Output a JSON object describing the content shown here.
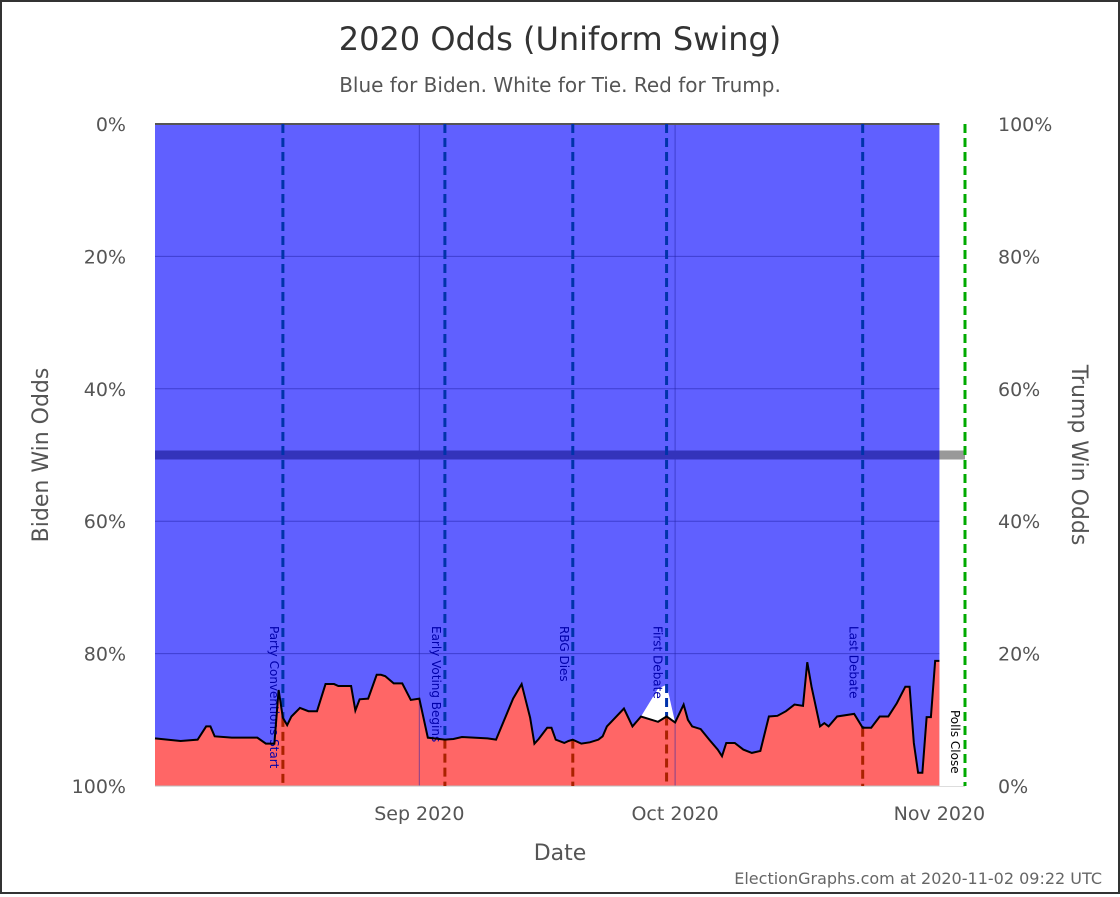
{
  "chart_data": {
    "type": "area",
    "title": "2020 Odds (Uniform Swing)",
    "subtitle": "Blue for Biden. White for Tie. Red for Trump.",
    "xlabel": "Date",
    "ylabel_left": "Biden Win Odds",
    "ylabel_right": "Trump Win Odds",
    "x_range": [
      "2020-08-01",
      "2020-11-04"
    ],
    "x_ticks": [
      {
        "date": "2020-09-01",
        "label": "Sep 2020"
      },
      {
        "date": "2020-10-01",
        "label": "Oct 2020"
      },
      {
        "date": "2020-11-01",
        "label": "Nov 2020"
      }
    ],
    "left_ticks": [
      {
        "value": 0,
        "label": "0%"
      },
      {
        "value": 20,
        "label": "20%"
      },
      {
        "value": 40,
        "label": "40%"
      },
      {
        "value": 60,
        "label": "60%"
      },
      {
        "value": 80,
        "label": "80%"
      },
      {
        "value": 100,
        "label": "100%"
      }
    ],
    "right_ticks": [
      {
        "value": 0,
        "label": "100%"
      },
      {
        "value": 20,
        "label": "80%"
      },
      {
        "value": 40,
        "label": "60%"
      },
      {
        "value": 60,
        "label": "40%"
      },
      {
        "value": 80,
        "label": "20%"
      },
      {
        "value": 100,
        "label": "0%"
      }
    ],
    "grid": true,
    "colors": {
      "biden": "#6060ff",
      "trump": "#ff6666",
      "tie": "#ffffff",
      "event_line": "#0033aa",
      "event_line_lower": "#aa2200",
      "event_text": "#0000aa",
      "event_text_lower": "#aa0000",
      "polls_close": "#00aa00",
      "midline": "#3333bb",
      "outline": "#000000"
    },
    "events": [
      {
        "date": "2020-08-16",
        "label": "Party Conventions Start"
      },
      {
        "date": "2020-09-04",
        "label": "Early Voting Begins"
      },
      {
        "date": "2020-09-19",
        "label": "RBG Dies"
      },
      {
        "date": "2020-09-30",
        "label": "First Debate"
      },
      {
        "date": "2020-10-23",
        "label": "Last Debate"
      }
    ],
    "polls_close": {
      "date": "2020-11-04",
      "label": "Polls Close"
    },
    "series": [
      {
        "dates": [
          "2020-08-01",
          "2020-08-04",
          "2020-08-06",
          "2020-08-07",
          "2020-08-07.5",
          "2020-08-08",
          "2020-08-10",
          "2020-08-13",
          "2020-08-14",
          "2020-08-15",
          "2020-08-15.5",
          "2020-08-16",
          "2020-08-16.5",
          "2020-08-17",
          "2020-08-18",
          "2020-08-19",
          "2020-08-20",
          "2020-08-21",
          "2020-08-22",
          "2020-08-22.5",
          "2020-08-23",
          "2020-08-24",
          "2020-08-24.5",
          "2020-08-25",
          "2020-08-26",
          "2020-08-27",
          "2020-08-27.5",
          "2020-08-28",
          "2020-08-29",
          "2020-08-30",
          "2020-08-31",
          "2020-09-01",
          "2020-09-02",
          "2020-09-04",
          "2020-09-05",
          "2020-09-06",
          "2020-09-09",
          "2020-09-10",
          "2020-09-12",
          "2020-09-13",
          "2020-09-14",
          "2020-09-14.5",
          "2020-09-15",
          "2020-09-16",
          "2020-09-16.5",
          "2020-09-17",
          "2020-09-18",
          "2020-09-18.5",
          "2020-09-19",
          "2020-09-20",
          "2020-09-21",
          "2020-09-22",
          "2020-09-22.5",
          "2020-09-23",
          "2020-09-25",
          "2020-09-26",
          "2020-09-27",
          "2020-09-29",
          "2020-09-30",
          "2020-10-01",
          "2020-10-02",
          "2020-10-02.5",
          "2020-10-03",
          "2020-10-04",
          "2020-10-05",
          "2020-10-06",
          "2020-10-06.5",
          "2020-10-07",
          "2020-10-08",
          "2020-10-09",
          "2020-10-10",
          "2020-10-11",
          "2020-10-12",
          "2020-10-13",
          "2020-10-14",
          "2020-10-15",
          "2020-10-16",
          "2020-10-16.5",
          "2020-10-17",
          "2020-10-18",
          "2020-10-18.5",
          "2020-10-19",
          "2020-10-20",
          "2020-10-22",
          "2020-10-23",
          "2020-10-24",
          "2020-10-25",
          "2020-10-26",
          "2020-10-27",
          "2020-10-28",
          "2020-10-28.5",
          "2020-10-29",
          "2020-10-29.5",
          "2020-10-30",
          "2020-10-30.5",
          "2020-10-31",
          "2020-10-31.5",
          "2020-11-01"
        ],
        "trump_pct": [
          7.2,
          6.8,
          7.0,
          9.0,
          9.0,
          7.5,
          7.3,
          7.3,
          6.4,
          6.4,
          14.5,
          10.3,
          9.2,
          10.5,
          11.8,
          11.3,
          11.3,
          15.4,
          15.4,
          15.1,
          15.1,
          15.1,
          11.4,
          13.1,
          13.2,
          16.8,
          16.8,
          16.6,
          15.5,
          15.5,
          13.0,
          13.2,
          7.3,
          7.0,
          7.1,
          7.4,
          7.2,
          7.0,
          13.2,
          15.4,
          10.3,
          6.4,
          7.1,
          8.8,
          8.8,
          7.0,
          6.5,
          6.8,
          7.0,
          6.4,
          6.6,
          7.0,
          7.5,
          9.0,
          11.7,
          9.0,
          10.5,
          9.7,
          10.5,
          9.6,
          12.3,
          10.0,
          9.0,
          8.6,
          7.0,
          5.5,
          4.5,
          6.5,
          6.5,
          5.5,
          5.0,
          5.3,
          10.5,
          10.6,
          11.3,
          12.3,
          12.1,
          18.7,
          15.0,
          9.0,
          9.5,
          9.0,
          10.5,
          10.9,
          8.8,
          8.8,
          10.5,
          10.5,
          12.5,
          15.0,
          15.0,
          6.5,
          2.0,
          2.0,
          10.4,
          10.4,
          18.9,
          18.9
        ],
        "tie_pct": [
          0,
          0,
          0,
          0,
          0,
          0,
          0,
          0,
          0,
          0,
          0,
          0,
          0,
          0,
          0,
          0,
          0,
          0,
          0,
          0,
          0,
          0,
          0,
          0,
          0,
          0,
          0,
          0,
          0,
          0,
          0,
          0,
          0,
          0,
          0,
          0,
          0,
          0,
          0,
          0,
          0,
          0,
          0,
          0,
          0,
          0,
          0,
          0,
          0,
          0,
          0,
          0,
          0,
          0,
          0,
          0,
          0,
          5.0,
          4.8,
          0,
          0,
          0,
          0,
          0,
          0,
          0,
          0,
          0,
          0,
          0,
          0,
          0,
          0,
          0,
          0,
          0,
          0,
          0,
          0,
          0,
          0,
          0,
          0,
          0,
          0,
          0,
          0,
          0,
          0,
          0,
          0,
          0,
          0,
          0,
          0,
          0,
          0,
          0
        ]
      }
    ]
  },
  "credit": "ElectionGraphs.com at 2020-11-02 09:22 UTC"
}
